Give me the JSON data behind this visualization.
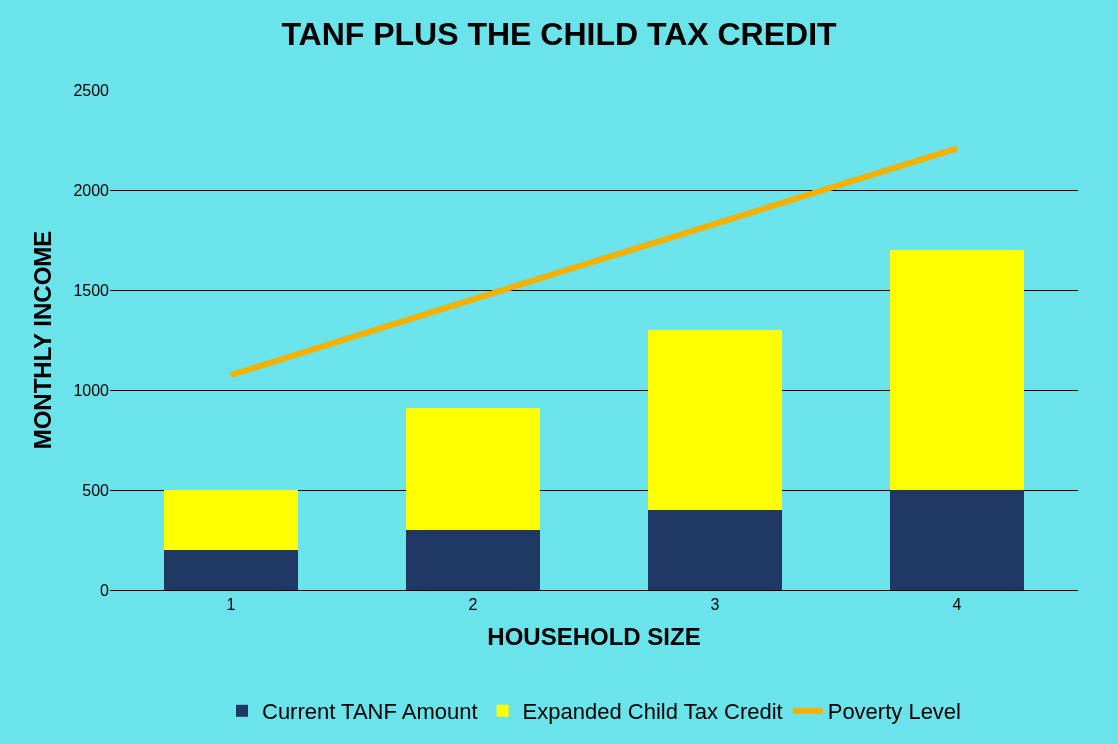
{
  "chart_data": {
    "type": "bar",
    "title": "TANF PLUS THE CHILD TAX CREDIT",
    "xlabel": "HOUSEHOLD SIZE",
    "ylabel": "MONTHLY INCOME",
    "categories": [
      "1",
      "2",
      "3",
      "4"
    ],
    "stacked": true,
    "series": [
      {
        "name": "Current TANF Amount",
        "color": "#1f3864",
        "values": [
          200,
          300,
          400,
          500
        ]
      },
      {
        "name": "Expanded Child Tax Credit",
        "color": "#ffff00",
        "values": [
          300,
          610,
          900,
          1200
        ]
      },
      {
        "name": "Poverty Level",
        "type": "line",
        "color": "#f5b000",
        "values": [
          1075,
          1453,
          1831,
          2208
        ]
      }
    ],
    "ylim": [
      0,
      2500
    ],
    "yticks": [
      0,
      500,
      1000,
      1500,
      2000,
      2500
    ],
    "grid": "y",
    "legend": "bottom"
  }
}
